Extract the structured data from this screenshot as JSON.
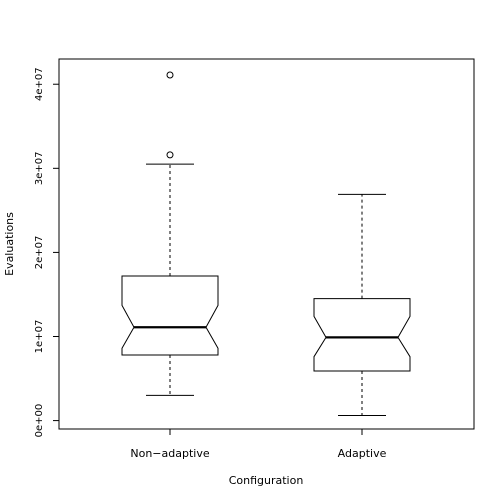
{
  "chart_data": {
    "type": "boxplot",
    "xlabel": "Configuration",
    "ylabel": "Evaluations",
    "ylim": [
      -1000000,
      43000000
    ],
    "yticks": [
      0,
      10000000,
      20000000,
      30000000,
      40000000
    ],
    "ytick_labels": [
      "0e+00",
      "1e+07",
      "2e+07",
      "3e+07",
      "4e+07"
    ],
    "grid": false,
    "notched": true,
    "categories": [
      "Non−adaptive",
      "Adaptive"
    ],
    "boxes": [
      {
        "category": "Non−adaptive",
        "whisker_low": 3000000,
        "q1": 7800000,
        "notch_low": 8600000,
        "median": 11100000,
        "notch_high": 13700000,
        "q3": 17200000,
        "whisker_high": 30500000,
        "outliers": [
          31600000,
          41100000
        ]
      },
      {
        "category": "Adaptive",
        "whisker_low": 600000,
        "q1": 5900000,
        "notch_low": 7600000,
        "median": 9900000,
        "notch_high": 12400000,
        "q3": 14500000,
        "whisker_high": 26900000,
        "outliers": []
      }
    ]
  }
}
